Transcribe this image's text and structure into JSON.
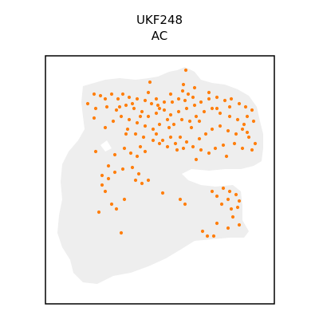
{
  "chart_data": {
    "type": "scatter",
    "title_lines": [
      "UKF248",
      "AC"
    ],
    "xlabel": "",
    "ylabel": "",
    "axes_visible": false,
    "grid": false,
    "legend": "none",
    "colors": {
      "background_tissue": "#eeeeee",
      "highlight": "#ff7f0e",
      "frame": "#000000"
    },
    "series": [
      {
        "role": "highlighted spots",
        "points": [
          [
            233,
            88
          ],
          [
            188,
            103
          ],
          [
            230,
            106
          ],
          [
            244,
            110
          ],
          [
            229,
            114
          ],
          [
            236,
            118
          ],
          [
            242,
            122
          ],
          [
            224,
            124
          ],
          [
            216,
            128
          ],
          [
            206,
            128
          ],
          [
            198,
            132
          ],
          [
            190,
            130
          ],
          [
            182,
            126
          ],
          [
            172,
            124
          ],
          [
            162,
            122
          ],
          [
            154,
            118
          ],
          [
            148,
            124
          ],
          [
            140,
            118
          ],
          [
            132,
            124
          ],
          [
            126,
            120
          ],
          [
            118,
            118
          ],
          [
            110,
            130
          ],
          [
            120,
            136
          ],
          [
            134,
            134
          ],
          [
            146,
            138
          ],
          [
            158,
            132
          ],
          [
            168,
            136
          ],
          [
            178,
            140
          ],
          [
            186,
            146
          ],
          [
            196,
            142
          ],
          [
            206,
            138
          ],
          [
            214,
            144
          ],
          [
            224,
            140
          ],
          [
            234,
            136
          ],
          [
            244,
            132
          ],
          [
            252,
            128
          ],
          [
            262,
            124
          ],
          [
            272,
            122
          ],
          [
            282,
            126
          ],
          [
            290,
            124
          ],
          [
            300,
            130
          ],
          [
            308,
            134
          ],
          [
            316,
            138
          ],
          [
            310,
            146
          ],
          [
            318,
            152
          ],
          [
            306,
            156
          ],
          [
            298,
            150
          ],
          [
            288,
            146
          ],
          [
            276,
            142
          ],
          [
            266,
            136
          ],
          [
            256,
            140
          ],
          [
            246,
            146
          ],
          [
            238,
            152
          ],
          [
            228,
            150
          ],
          [
            218,
            156
          ],
          [
            210,
            150
          ],
          [
            200,
            156
          ],
          [
            192,
            162
          ],
          [
            182,
            158
          ],
          [
            172,
            154
          ],
          [
            162,
            150
          ],
          [
            152,
            146
          ],
          [
            142,
            152
          ],
          [
            132,
            160
          ],
          [
            118,
            148
          ],
          [
            160,
            162
          ],
          [
            170,
            168
          ],
          [
            180,
            172
          ],
          [
            196,
            168
          ],
          [
            204,
            176
          ],
          [
            214,
            172
          ],
          [
            220,
            180
          ],
          [
            210,
            184
          ],
          [
            200,
            180
          ],
          [
            226,
            172
          ],
          [
            234,
            178
          ],
          [
            242,
            184
          ],
          [
            250,
            174
          ],
          [
            258,
            168
          ],
          [
            266,
            162
          ],
          [
            276,
            158
          ],
          [
            286,
            164
          ],
          [
            296,
            168
          ],
          [
            304,
            162
          ],
          [
            312,
            172
          ],
          [
            320,
            180
          ],
          [
            316,
            188
          ],
          [
            304,
            186
          ],
          [
            294,
            180
          ],
          [
            280,
            182
          ],
          [
            270,
            186
          ],
          [
            262,
            192
          ],
          [
            252,
            188
          ],
          [
            230,
            186
          ],
          [
            156,
            186
          ],
          [
            164,
            192
          ],
          [
            172,
            196
          ],
          [
            182,
            190
          ],
          [
            144,
            194
          ],
          [
            136,
            208
          ],
          [
            128,
            220
          ],
          [
            136,
            224
          ],
          [
            144,
            216
          ],
          [
            154,
            212
          ],
          [
            166,
            210
          ],
          [
            174,
            218
          ],
          [
            170,
            226
          ],
          [
            178,
            230
          ],
          [
            186,
            226
          ],
          [
            128,
            232
          ],
          [
            132,
            240
          ],
          [
            124,
            266
          ],
          [
            140,
            256
          ],
          [
            146,
            262
          ],
          [
            156,
            250
          ],
          [
            204,
            242
          ],
          [
            226,
            250
          ],
          [
            232,
            256
          ],
          [
            266,
            240
          ],
          [
            272,
            246
          ],
          [
            280,
            236
          ],
          [
            288,
            240
          ],
          [
            296,
            244
          ],
          [
            286,
            250
          ],
          [
            278,
            256
          ],
          [
            290,
            262
          ],
          [
            298,
            260
          ],
          [
            300,
            252
          ],
          [
            292,
            272
          ],
          [
            300,
            282
          ],
          [
            286,
            286
          ],
          [
            272,
            280
          ],
          [
            254,
            290
          ],
          [
            260,
            296
          ],
          [
            268,
            296
          ],
          [
            152,
            292
          ],
          [
            166,
            130
          ],
          [
            120,
            190
          ],
          [
            186,
            116
          ],
          [
            214,
            118
          ],
          [
            232,
            126
          ],
          [
            262,
            116
          ],
          [
            158,
            168
          ],
          [
            196,
            124
          ],
          [
            272,
            136
          ],
          [
            250,
            152
          ],
          [
            150,
            134
          ],
          [
            176,
            146
          ],
          [
            212,
            160
          ],
          [
            240,
            160
          ],
          [
            200,
            136
          ],
          [
            288,
            134
          ],
          [
            246,
            200
          ],
          [
            284,
            196
          ],
          [
            222,
            188
          ],
          [
            310,
            166
          ],
          [
            192,
            176
          ],
          [
            176,
            184
          ]
        ]
      }
    ]
  }
}
